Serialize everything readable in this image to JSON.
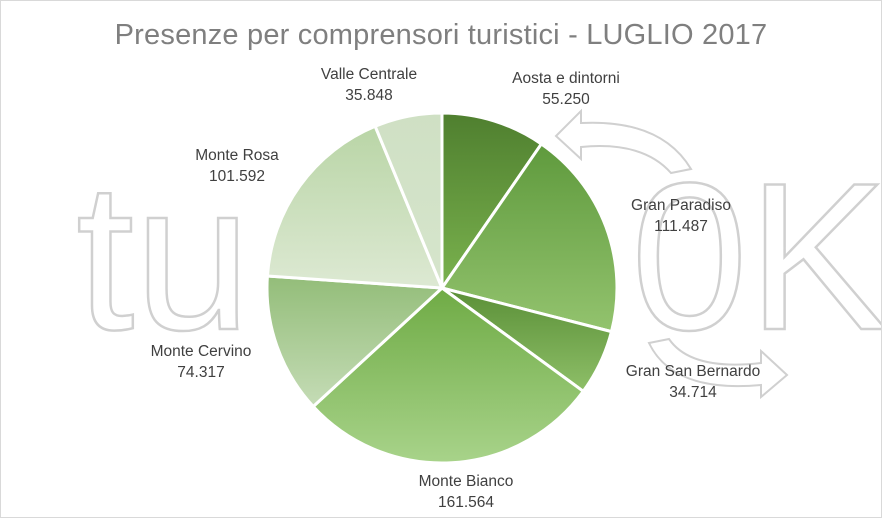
{
  "chart_data": {
    "type": "pie",
    "title": "Presenze per comprensori turistici - LUGLIO 2017",
    "slices": [
      {
        "label": "Aosta e dintorni",
        "value": 55250,
        "display": "55.250",
        "color_top": "#4f7f2f",
        "color_bottom": "#7ab24e"
      },
      {
        "label": "Gran Paradiso",
        "value": 111487,
        "display": "111.487",
        "color_top": "#5f9a3d",
        "color_bottom": "#93c36e"
      },
      {
        "label": "Gran San Bernardo",
        "value": 34714,
        "display": "34.714",
        "color_top": "#5a8f37",
        "color_bottom": "#8ebf68"
      },
      {
        "label": "Monte Bianco",
        "value": 161564,
        "display": "161.564",
        "color_top": "#6fab45",
        "color_bottom": "#a8d38a"
      },
      {
        "label": "Monte Cervino",
        "value": 74317,
        "display": "74.317",
        "color_top": "#93bd79",
        "color_bottom": "#c5dcb6"
      },
      {
        "label": "Monte Rosa",
        "value": 101592,
        "display": "101.592",
        "color_top": "#b9d5a6",
        "color_bottom": "#dde9d3"
      },
      {
        "label": "Valle Centrale",
        "value": 35848,
        "display": "35.848",
        "color_top": "#cfe0c4",
        "color_bottom": "#d6e5cc"
      }
    ],
    "watermark": "tuttoOK",
    "legend": "none"
  }
}
